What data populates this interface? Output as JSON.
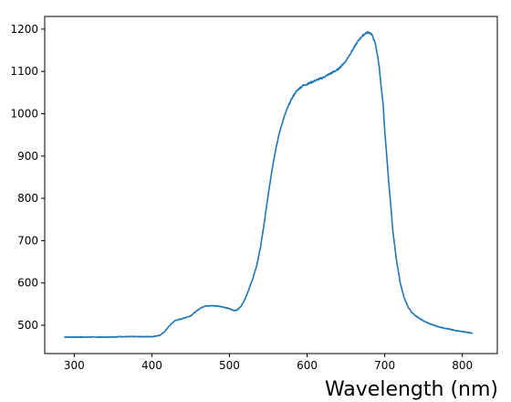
{
  "chart_data": {
    "type": "line",
    "title": "",
    "xlabel": "Wavelength (nm)",
    "ylabel": "",
    "xlim": [
      262,
      845
    ],
    "ylim": [
      433,
      1230
    ],
    "xticks": [
      300,
      400,
      500,
      600,
      700,
      800
    ],
    "yticks": [
      500,
      600,
      700,
      800,
      900,
      1000,
      1100,
      1200
    ],
    "grid": false,
    "legend": "none",
    "colors": {
      "line": "#1f77b4"
    },
    "series": [
      {
        "x": [
          287,
          300,
          320,
          340,
          360,
          380,
          400,
          410,
          415,
          420,
          425,
          430,
          440,
          450,
          455,
          460,
          465,
          470,
          480,
          490,
          500,
          505,
          510,
          515,
          520,
          525,
          530,
          535,
          540,
          545,
          550,
          555,
          560,
          565,
          570,
          575,
          580,
          585,
          590,
          595,
          600,
          610,
          620,
          630,
          640,
          650,
          655,
          660,
          665,
          670,
          675,
          678,
          680,
          683,
          685,
          688,
          690,
          693,
          695,
          698,
          700,
          703,
          705,
          708,
          710,
          715,
          720,
          725,
          730,
          735,
          740,
          750,
          760,
          770,
          780,
          790,
          800,
          810,
          813
        ],
        "y": [
          472,
          472,
          472,
          472,
          473,
          473,
          473,
          476,
          482,
          493,
          503,
          511,
          516,
          522,
          530,
          537,
          543,
          546,
          546,
          544,
          539,
          535,
          536,
          545,
          562,
          585,
          610,
          640,
          685,
          745,
          810,
          870,
          920,
          960,
          990,
          1015,
          1035,
          1050,
          1060,
          1067,
          1070,
          1078,
          1085,
          1095,
          1105,
          1125,
          1140,
          1155,
          1170,
          1182,
          1190,
          1192,
          1192,
          1188,
          1180,
          1165,
          1145,
          1110,
          1070,
          1020,
          960,
          890,
          840,
          780,
          730,
          655,
          600,
          565,
          543,
          530,
          522,
          510,
          502,
          496,
          492,
          488,
          485,
          482,
          480
        ]
      }
    ]
  }
}
